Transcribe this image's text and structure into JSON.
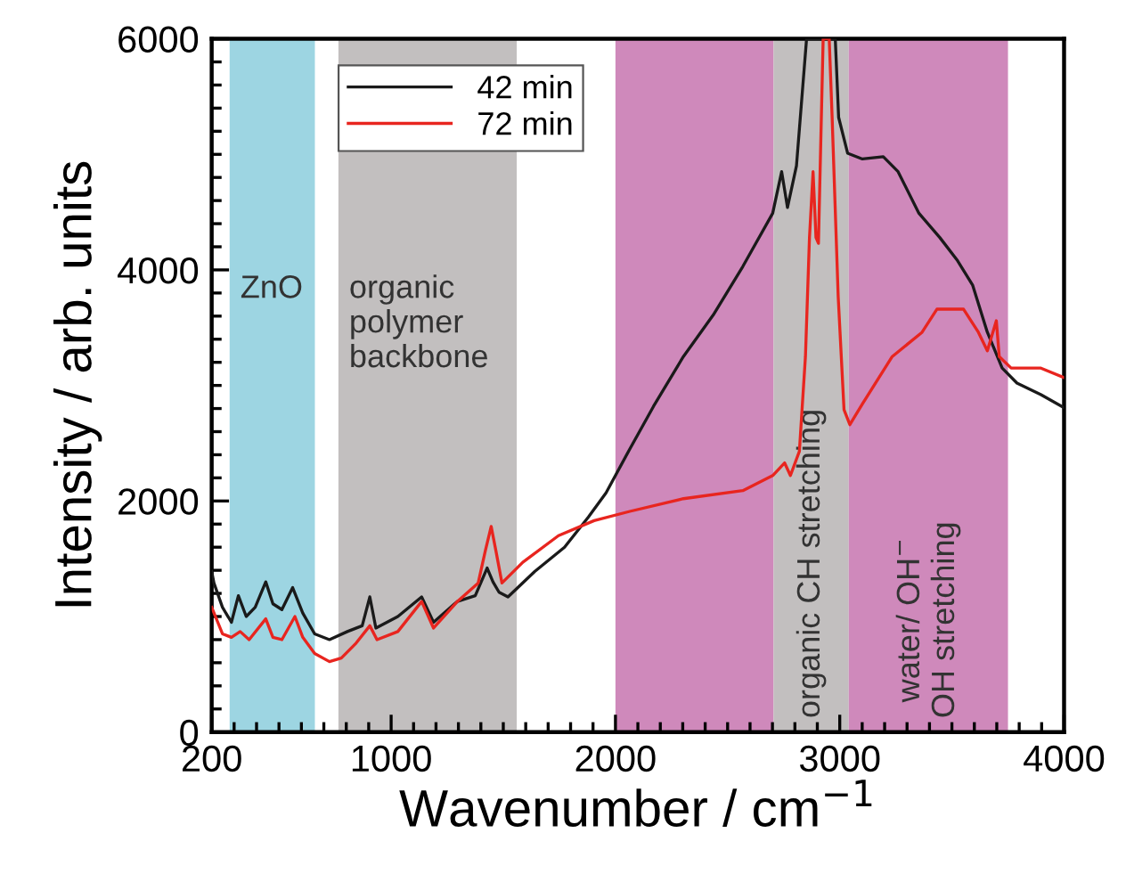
{
  "chart_data": {
    "type": "line",
    "xlabel": "Wavenumber / cm$^{−1}$",
    "ylabel": "Intensity / arb. units",
    "xlim": [
      200,
      4000
    ],
    "ylim": [
      0,
      6000
    ],
    "xticks": [
      200,
      {
        "value": 300,
        "label": null
      },
      {
        "value": 400,
        "label": null
      },
      {
        "value": 500,
        "label": null
      },
      {
        "value": 600,
        "label": null
      },
      {
        "value": 700,
        "label": null
      },
      {
        "value": 800,
        "label": null
      },
      {
        "value": 900,
        "label": null
      },
      1000,
      {
        "value": 1100,
        "label": null
      },
      {
        "value": 1200,
        "label": null
      },
      {
        "value": 1300,
        "label": null
      },
      {
        "value": 1400,
        "label": null
      },
      {
        "value": 1500,
        "label": null
      },
      {
        "value": 1600,
        "label": null
      },
      {
        "value": 1700,
        "label": null
      },
      {
        "value": 1800,
        "label": null
      },
      {
        "value": 1900,
        "label": null
      },
      2000,
      {
        "value": 2100,
        "label": null
      },
      {
        "value": 2200,
        "label": null
      },
      {
        "value": 2300,
        "label": null
      },
      {
        "value": 2400,
        "label": null
      },
      {
        "value": 2500,
        "label": null
      },
      {
        "value": 2600,
        "label": null
      },
      {
        "value": 2700,
        "label": null
      },
      {
        "value": 2800,
        "label": null
      },
      {
        "value": 2900,
        "label": null
      },
      3000,
      {
        "value": 3100,
        "label": null
      },
      {
        "value": 3200,
        "label": null
      },
      {
        "value": 3300,
        "label": null
      },
      {
        "value": 3400,
        "label": null
      },
      {
        "value": 3500,
        "label": null
      },
      {
        "value": 3600,
        "label": null
      },
      {
        "value": 3700,
        "label": null
      },
      {
        "value": 3800,
        "label": null
      },
      {
        "value": 3900,
        "label": null
      },
      4000
    ],
    "yticks": [
      0,
      {
        "value": 200,
        "label": null
      },
      {
        "value": 400,
        "label": null
      },
      {
        "value": 600,
        "label": null
      },
      {
        "value": 800,
        "label": null
      },
      {
        "value": 1000,
        "label": null
      },
      {
        "value": 1200,
        "label": null
      },
      {
        "value": 1400,
        "label": null
      },
      {
        "value": 1600,
        "label": null
      },
      {
        "value": 1800,
        "label": null
      },
      2000,
      {
        "value": 2200,
        "label": null
      },
      {
        "value": 2400,
        "label": null
      },
      {
        "value": 2600,
        "label": null
      },
      {
        "value": 2800,
        "label": null
      },
      {
        "value": 3000,
        "label": null
      },
      {
        "value": 3200,
        "label": null
      },
      {
        "value": 3400,
        "label": null
      },
      {
        "value": 3600,
        "label": null
      },
      {
        "value": 3800,
        "label": null
      },
      4000,
      {
        "value": 4200,
        "label": null
      },
      {
        "value": 4400,
        "label": null
      },
      {
        "value": 4600,
        "label": null
      },
      {
        "value": 4800,
        "label": null
      },
      {
        "value": 5000,
        "label": null
      },
      {
        "value": 5200,
        "label": null
      },
      {
        "value": 5400,
        "label": null
      },
      {
        "value": 5600,
        "label": null
      },
      {
        "value": 5800,
        "label": null
      },
      6000
    ],
    "grid": false,
    "legend": "top left",
    "marker": "none",
    "line_style": "solid",
    "bands": [
      {
        "axis": "x",
        "from": 280,
        "to": 660,
        "label": "ZnO",
        "color": "#9dd5e2"
      },
      {
        "axis": "x",
        "from": 765,
        "to": 1560,
        "label": "organic\npolymer\nbackbone",
        "color": "#c2bfbf"
      },
      {
        "axis": "x",
        "from": 2000,
        "to": 2705,
        "color": "#cf89bb"
      },
      {
        "axis": "x",
        "from": 2705,
        "to": 3040,
        "label": "organic CH stretching",
        "color": "#c2bfbf"
      },
      {
        "axis": "x",
        "from": 3040,
        "to": 3750,
        "label": "water/ OH$^{−}$\nOH stretching",
        "color": "#cf89bb"
      }
    ],
    "series": [
      {
        "name": "42 min",
        "color": "#1a1a1a",
        "x": [
          200,
          210,
          248,
          288,
          319,
          354,
          394,
          441,
          473,
          513,
          561,
          606,
          659,
          725,
          805,
          871,
          905,
          932,
          1030,
          1136,
          1189,
          1295,
          1375,
          1428,
          1454,
          1481,
          1521,
          1640,
          1773,
          1879,
          1958,
          2064,
          2170,
          2303,
          2436,
          2568,
          2701,
          2741,
          2767,
          2807,
          2852,
          2980,
          2995,
          3035,
          3101,
          3194,
          3260,
          3353,
          3446,
          3525,
          3592,
          3658,
          3724,
          3790,
          3897,
          3997
        ],
        "values": [
          1390,
          1290,
          1080,
          950,
          1180,
          1000,
          1080,
          1300,
          1110,
          1060,
          1250,
          1030,
          850,
          800,
          870,
          920,
          1170,
          900,
          1000,
          1170,
          950,
          1130,
          1180,
          1420,
          1300,
          1210,
          1170,
          1390,
          1600,
          1860,
          2070,
          2450,
          2820,
          3250,
          3610,
          4030,
          4490,
          4850,
          4540,
          4900,
          6000,
          6000,
          5320,
          5010,
          4960,
          4980,
          4850,
          4490,
          4280,
          4080,
          3870,
          3460,
          3150,
          3020,
          2920,
          2810
        ]
      },
      {
        "name": "72 min",
        "color": "#e8251f",
        "x": [
          200,
          248,
          288,
          327,
          367,
          441,
          473,
          513,
          571,
          606,
          659,
          725,
          778,
          844,
          905,
          937,
          1030,
          1136,
          1189,
          1295,
          1388,
          1420,
          1446,
          1467,
          1494,
          1587,
          1746,
          1905,
          2064,
          2303,
          2568,
          2701,
          2754,
          2780,
          2820,
          2847,
          2865,
          2881,
          2894,
          2905,
          2926,
          2953,
          2966,
          2993,
          3019,
          3045,
          3101,
          3234,
          3367,
          3433,
          3552,
          3618,
          3658,
          3698,
          3711,
          3764,
          3897,
          3997
        ],
        "values": [
          1080,
          850,
          820,
          870,
          800,
          980,
          820,
          800,
          1000,
          820,
          680,
          610,
          640,
          770,
          920,
          800,
          870,
          1130,
          900,
          1130,
          1290,
          1570,
          1780,
          1570,
          1290,
          1470,
          1700,
          1830,
          1910,
          2020,
          2090,
          2220,
          2330,
          2220,
          2430,
          3250,
          4280,
          4850,
          4280,
          4230,
          6000,
          6000,
          5320,
          3770,
          2790,
          2660,
          2840,
          3250,
          3460,
          3660,
          3660,
          3460,
          3300,
          3560,
          3250,
          3150,
          3150,
          3070
        ]
      }
    ]
  }
}
